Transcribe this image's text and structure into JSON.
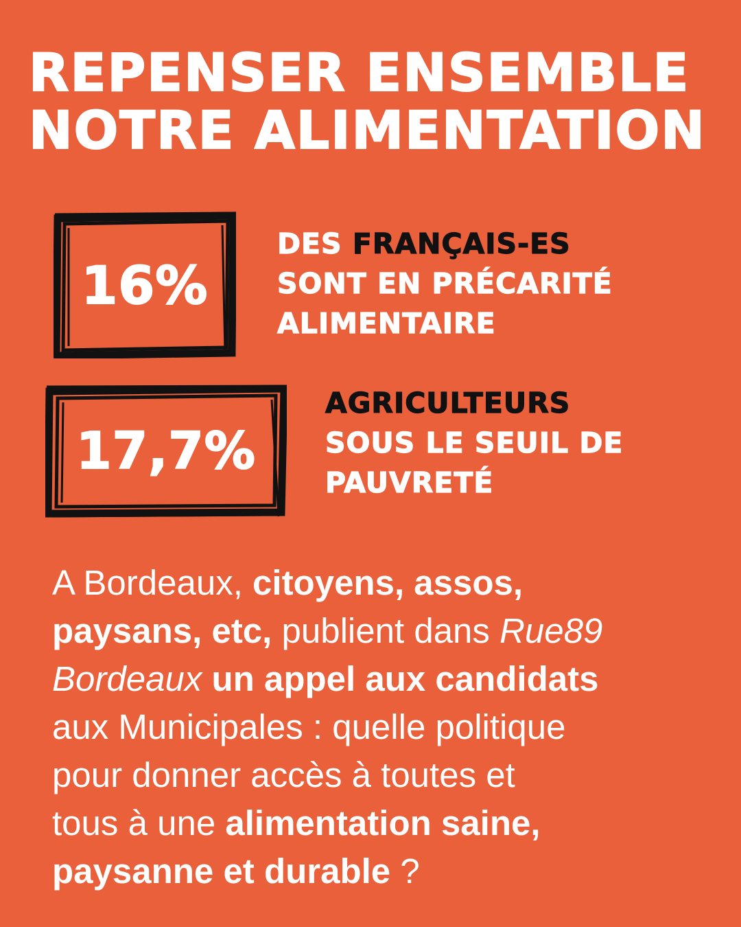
{
  "header": {
    "title_line1": "REPENSER ENSEMBLE",
    "title_line2": "NOTRE ALIMENTATION"
  },
  "stats": [
    {
      "value": "16%",
      "text_prefix": "DES ",
      "text_highlight": "FRANÇAIS-ES",
      "text_line2": "SONT EN PRÉCARITÉ",
      "text_line3": "ALIMENTAIRE"
    },
    {
      "value": "17,7%",
      "text_highlight": "AGRICULTEURS",
      "text_line2": "SOUS LE SEUIL DE",
      "text_line3": "PAUVRETÉ"
    }
  ],
  "paragraph": {
    "p1": "A Bordeaux, ",
    "b1": "citoyens, assos,",
    "b2": "paysans, etc,",
    "p2": " publient dans ",
    "i1": "Rue89",
    "i2": "Bordeaux",
    "p3": " ",
    "b3": "un appel aux candidats",
    "p4": "aux Municipales : quelle politique",
    "p5": "pour donner accès à toutes et",
    "p6": "tous à une ",
    "b4": "alimentation saine,",
    "b5": "paysanne et durable",
    "p7": " ?"
  },
  "colors": {
    "background": "#E9603A",
    "primary_text": "#FFFFFF",
    "highlight_text": "#111111",
    "box_stroke": "#111111"
  }
}
